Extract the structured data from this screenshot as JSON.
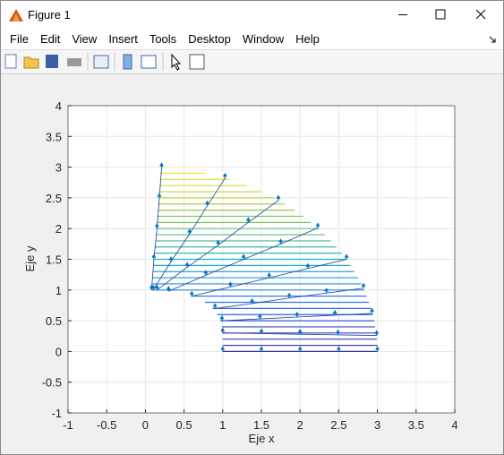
{
  "window": {
    "title": "Figure 1",
    "menu": [
      "File",
      "Edit",
      "View",
      "Insert",
      "Tools",
      "Desktop",
      "Window",
      "Help"
    ]
  },
  "chart_data": {
    "type": "quiver",
    "xlabel": "Eje x",
    "ylabel": "Eje y",
    "xlim": [
      -1,
      4
    ],
    "ylim": [
      -1,
      4
    ],
    "xticks": [
      -1,
      -0.5,
      0,
      0.5,
      1,
      1.5,
      2,
      2.5,
      3,
      3.5,
      4
    ],
    "yticks": [
      -1,
      -0.5,
      0,
      0.5,
      1,
      1.5,
      2,
      2.5,
      3,
      3.5,
      4
    ],
    "grid": true,
    "arrow_color": "#0072bd",
    "line_color": "#1f3f9e",
    "arrow_u": 0,
    "arrow_v": 0.07,
    "colormap": [
      "#3e26a8",
      "#2f6ff0",
      "#16b2c8",
      "#7fca5a",
      "#f5e21a"
    ],
    "quiver": [
      {
        "x": [
          1,
          1.5,
          2,
          2.5,
          3
        ],
        "y": [
          0,
          0,
          0,
          0,
          0
        ]
      },
      {
        "x": [
          1,
          1.5,
          2,
          2.49,
          2.99
        ],
        "y": [
          0.3,
          0.29,
          0.28,
          0.27,
          0.26
        ]
      },
      {
        "x": [
          0.99,
          1.48,
          1.96,
          2.45,
          2.93
        ],
        "y": [
          0.5,
          0.53,
          0.56,
          0.59,
          0.62
        ]
      },
      {
        "x": [
          0.9,
          1.38,
          1.86,
          2.34,
          2.82
        ],
        "y": [
          0.7,
          0.78,
          0.87,
          0.95,
          1.03
        ]
      },
      {
        "x": [
          0.6,
          1.1,
          1.6,
          2.1,
          2.6
        ],
        "y": [
          0.9,
          1.05,
          1.2,
          1.35,
          1.5
        ]
      },
      {
        "x": [
          0.3,
          0.78,
          1.27,
          1.75,
          2.23
        ],
        "y": [
          0.98,
          1.24,
          1.5,
          1.75,
          2.01
        ]
      },
      {
        "x": [
          0.15,
          0.54,
          0.94,
          1.33,
          1.72
        ],
        "y": [
          1,
          1.37,
          1.73,
          2.1,
          2.46
        ]
      },
      {
        "x": [
          0.1,
          0.33,
          0.57,
          0.8,
          1.03
        ],
        "y": [
          1,
          1.46,
          1.91,
          2.37,
          2.82
        ]
      },
      {
        "x": [
          0.08,
          0.11,
          0.15,
          0.18,
          0.21
        ],
        "y": [
          1,
          1.5,
          2,
          2.49,
          2.99
        ]
      }
    ],
    "levels": {
      "y": [
        0,
        0.1,
        0.2,
        0.3,
        0.4,
        0.5,
        0.6,
        0.7,
        0.8,
        0.9,
        1,
        1.1,
        1.2,
        1.3,
        1.4,
        1.5,
        1.6,
        1.7,
        1.8,
        1.9,
        2,
        2.1,
        2.2,
        2.3,
        2.4,
        2.5,
        2.6,
        2.7,
        2.8,
        2.9
      ],
      "x_start": [
        1,
        1,
        1,
        1,
        0.99,
        0.97,
        0.93,
        0.87,
        0.77,
        0.59,
        0.08,
        0.09,
        0.09,
        0.1,
        0.1,
        0.11,
        0.12,
        0.12,
        0.13,
        0.13,
        0.14,
        0.15,
        0.15,
        0.16,
        0.16,
        0.17,
        0.18,
        0.18,
        0.19,
        0.19
      ],
      "x_end": [
        3,
        3,
        2.99,
        2.99,
        2.97,
        2.96,
        2.94,
        2.92,
        2.89,
        2.86,
        2.83,
        2.79,
        2.75,
        2.7,
        2.65,
        2.6,
        2.54,
        2.47,
        2.4,
        2.32,
        2.24,
        2.14,
        2.04,
        1.93,
        1.8,
        1.66,
        1.5,
        1.31,
        1.08,
        0.77
      ]
    }
  }
}
